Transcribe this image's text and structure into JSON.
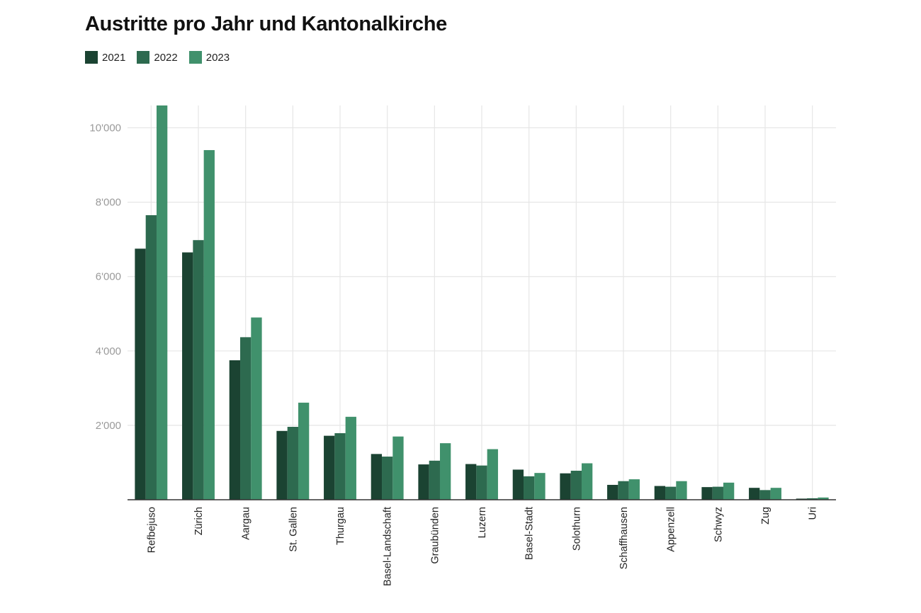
{
  "colors": {
    "s2021": "#1b4332",
    "s2022": "#2d6a4f",
    "s2023": "#40916c",
    "grid": "#e6e6e6",
    "axis": "#333333"
  },
  "chart_data": {
    "type": "bar",
    "title": "Austritte pro Jahr und Kantonalkirche",
    "xlabel": "",
    "ylabel": "",
    "ylim": [
      0,
      10600
    ],
    "y_ticks": [
      2000,
      4000,
      6000,
      8000,
      10000
    ],
    "y_tick_labels": [
      "2'000",
      "4'000",
      "6'000",
      "8'000",
      "10'000"
    ],
    "grid": true,
    "legend_position": "top-left",
    "categories": [
      "Refbejuso",
      "Zürich",
      "Aargau",
      "St. Gallen",
      "Thurgau",
      "Basel-Landschaft",
      "Graubünden",
      "Luzern",
      "Basel-Stadt",
      "Solothurn",
      "Schaffhausen",
      "Appenzell",
      "Schwyz",
      "Zug",
      "Uri"
    ],
    "series": [
      {
        "name": "2021",
        "color": "#1b4332",
        "values": [
          6750,
          6650,
          3750,
          1850,
          1720,
          1230,
          950,
          960,
          810,
          710,
          400,
          370,
          340,
          320,
          30
        ]
      },
      {
        "name": "2022",
        "color": "#2d6a4f",
        "values": [
          7650,
          6980,
          4370,
          1960,
          1790,
          1160,
          1050,
          920,
          630,
          780,
          500,
          350,
          350,
          260,
          40
        ]
      },
      {
        "name": "2023",
        "color": "#40916c",
        "values": [
          10600,
          9400,
          4900,
          2610,
          2230,
          1700,
          1520,
          1360,
          720,
          980,
          550,
          500,
          460,
          320,
          60
        ]
      }
    ]
  }
}
